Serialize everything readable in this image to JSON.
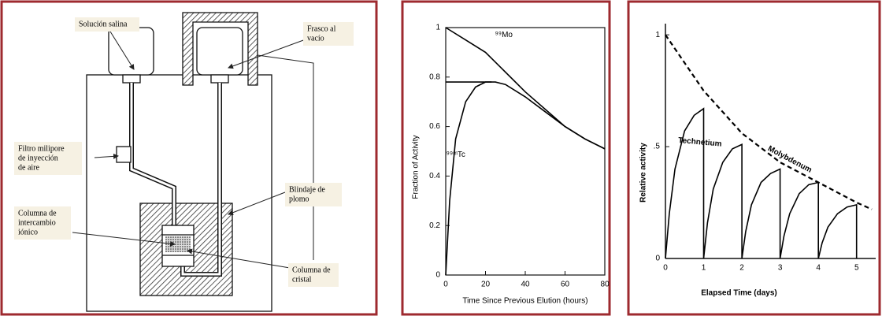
{
  "diagram": {
    "labels": [
      {
        "lines": [
          "Solución salina"
        ]
      },
      {
        "lines": [
          "Frasco al",
          "vacío"
        ]
      },
      {
        "lines": [
          "Filtro milipore",
          "de inyección",
          "de aire"
        ]
      },
      {
        "lines": [
          "Blindaje de",
          "plomo"
        ]
      },
      {
        "lines": [
          "Columna de",
          "intercambio",
          "iónico"
        ]
      },
      {
        "lines": [
          "Columna de",
          "cristal"
        ]
      }
    ]
  },
  "chart_data": [
    {
      "type": "line",
      "x_label": "Time Since Previous Elution (hours)",
      "y_label": "Fraction of Activity",
      "xlim": [
        0,
        80
      ],
      "ylim": [
        0,
        1
      ],
      "xticks": [
        0,
        20,
        40,
        60,
        80
      ],
      "yticks": [
        0,
        0.2,
        0.4,
        0.6,
        0.8,
        1
      ],
      "frame": true,
      "series": [
        {
          "name": "⁹⁹Mo",
          "color": "#000000",
          "x": [
            0,
            10,
            20,
            30,
            40,
            50,
            60,
            70,
            80
          ],
          "values": [
            1,
            0.95,
            0.9,
            0.82,
            0.74,
            0.67,
            0.6,
            0.55,
            0.51
          ]
        },
        {
          "name": "⁹⁹ᵐTc",
          "color": "#000000",
          "x": [
            0,
            2,
            5,
            10,
            15,
            20,
            25,
            30,
            40,
            50,
            60,
            70,
            80
          ],
          "values": [
            0,
            0.3,
            0.55,
            0.7,
            0.76,
            0.78,
            0.78,
            0.77,
            0.72,
            0.66,
            0.6,
            0.55,
            0.51
          ]
        },
        {
          "color": "#000000",
          "x": [
            0,
            23
          ],
          "values": [
            0.78,
            0.78
          ]
        }
      ]
    },
    {
      "type": "line",
      "x_label": "Elapsed Time (days)",
      "y_label": "Relative activity",
      "xlim": [
        0,
        5.5
      ],
      "ylim": [
        0,
        1.05
      ],
      "xticks": [
        0,
        1,
        2,
        3,
        4,
        5
      ],
      "yticks": [
        0,
        {
          "value": 0.5,
          "label": ".5"
        },
        1
      ],
      "frame": false,
      "series": [
        {
          "name": "Molybdenum",
          "color": "#000000",
          "dashed": true,
          "x": [
            0,
            1,
            2,
            3,
            4,
            5,
            5.4
          ],
          "values": [
            1,
            0.75,
            0.56,
            0.43,
            0.34,
            0.25,
            0.22
          ]
        },
        {
          "name": "Technetium",
          "color": "#000000",
          "dashed": false,
          "x": [
            0,
            0.1,
            0.25,
            0.5,
            0.75,
            1,
            1,
            1.1,
            1.25,
            1.5,
            1.75,
            2,
            2,
            2.1,
            2.25,
            2.5,
            2.75,
            3,
            3,
            3.1,
            3.25,
            3.5,
            3.75,
            4,
            4,
            4.1,
            4.25,
            4.5,
            4.75,
            5,
            5
          ],
          "values": [
            0,
            0.2,
            0.4,
            0.57,
            0.64,
            0.67,
            0,
            0.16,
            0.31,
            0.43,
            0.49,
            0.51,
            0,
            0.12,
            0.24,
            0.34,
            0.38,
            0.4,
            0,
            0.1,
            0.2,
            0.29,
            0.33,
            0.34,
            0,
            0.07,
            0.14,
            0.2,
            0.23,
            0.24,
            0
          ]
        }
      ]
    }
  ]
}
